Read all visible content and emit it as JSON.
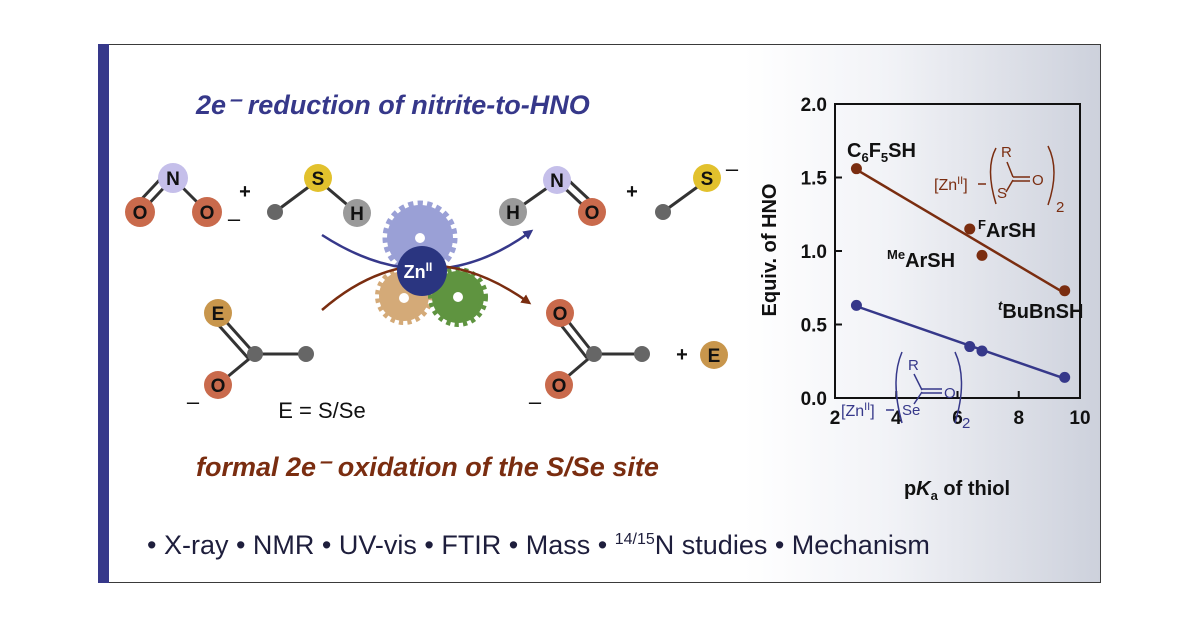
{
  "header": {
    "top_caption": "2e⁻ reduction of nitrite-to-HNO",
    "bottom_caption": "formal 2e⁻ oxidation of the S/Se site"
  },
  "scheme": {
    "nitrite_atoms": [
      "N",
      "O",
      "O"
    ],
    "plus": "+",
    "thiol_atoms": [
      "S",
      "H"
    ],
    "product_atoms": [
      "H",
      "N",
      "O"
    ],
    "thiolate_atoms": [
      "S"
    ],
    "metal": "Zn",
    "metal_ox": "II",
    "substrate_atom": "E",
    "acyl_O": "O",
    "charge": "–",
    "e_def": "E = S/Se",
    "byproduct": "E"
  },
  "colors": {
    "accent_blue": "#36388a",
    "accent_brown": "#7a2d10",
    "oxygen": "#c96a4c",
    "nitrogen": "#c5bfea",
    "sulfur": "#e2c12d",
    "hydrogen": "#9a9a9a",
    "gear_blue": "#9aa0d6",
    "gear_tan": "#d4aa78",
    "gear_green": "#5f9440",
    "zn": "#2a3580",
    "e_atom": "#c8964c"
  },
  "chart_data": {
    "type": "scatter",
    "xlabel": "pKa of thiol",
    "ylabel": "Equiv. of HNO",
    "xlim": [
      2,
      10
    ],
    "ylim": [
      0.0,
      2.0
    ],
    "xticks": [
      "2",
      "4",
      "6",
      "8",
      "10"
    ],
    "yticks": [
      "0.0",
      "0.5",
      "1.0",
      "1.5",
      "2.0"
    ],
    "series": [
      {
        "color": "#7a2d10",
        "x": [
          2.7,
          6.4,
          6.8,
          9.5
        ],
        "y": [
          1.56,
          1.15,
          0.97,
          0.73
        ]
      },
      {
        "color": "#36388a",
        "x": [
          2.7,
          6.4,
          6.8,
          9.5
        ],
        "y": [
          0.63,
          0.35,
          0.32,
          0.14
        ]
      }
    ],
    "point_labels": {
      "c6f5sh": [
        "C",
        "6",
        "F",
        "5",
        "SH"
      ],
      "farsh": [
        "F",
        "ArSH"
      ],
      "mearsh": [
        "Me",
        "ArSH"
      ],
      "tbubnsh": [
        "t",
        "BuBnSH"
      ]
    },
    "inset_top": {
      "complex": "[Zn",
      "ox": "II",
      "bracket": "]",
      "r": "R",
      "o": "O",
      "het": "S",
      "sub": "2"
    },
    "inset_bottom": {
      "complex": "[Zn",
      "ox": "II",
      "bracket": "]",
      "r": "R",
      "o": "O",
      "het": "Se",
      "sub": "2"
    }
  },
  "footer": {
    "p1": "• X-ray • NMR • UV-vis • FTIR • Mass • ",
    "sup": "14/15",
    "p2": "N studies • Mechanism"
  }
}
